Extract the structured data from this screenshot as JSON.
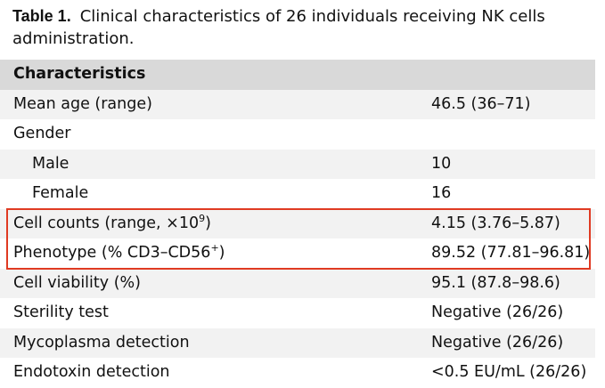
{
  "caption": {
    "label": "Table 1.",
    "text": "Clinical characteristics of 26 individuals receiving NK cells administration."
  },
  "table": {
    "header": "Characteristics",
    "rows": [
      {
        "label": "Mean age (range)",
        "value": "46.5 (36–71)"
      },
      {
        "label": "Gender",
        "value": ""
      },
      {
        "label": "Male",
        "value": "10",
        "indent": true
      },
      {
        "label": "Female",
        "value": "16",
        "indent": true
      },
      {
        "label": "Cell counts (range, ×10",
        "label_sup": "9",
        "label_end": ")",
        "value": "4.15 (3.76–5.87)",
        "highlight": true
      },
      {
        "label": "Phenotype (% CD3–CD56",
        "label_sup": "+",
        "label_end": ")",
        "value": "89.52 (77.81–96.81)",
        "highlight": true
      },
      {
        "label": "Cell viability (%)",
        "value": "95.1 (87.8–98.6)"
      },
      {
        "label": "Sterility test",
        "value": "Negative (26/26)"
      },
      {
        "label": "Mycoplasma detection",
        "value": "Negative (26/26)"
      },
      {
        "label": "Endotoxin detection",
        "value": "<0.5 EU/mL (26/26)"
      }
    ]
  }
}
